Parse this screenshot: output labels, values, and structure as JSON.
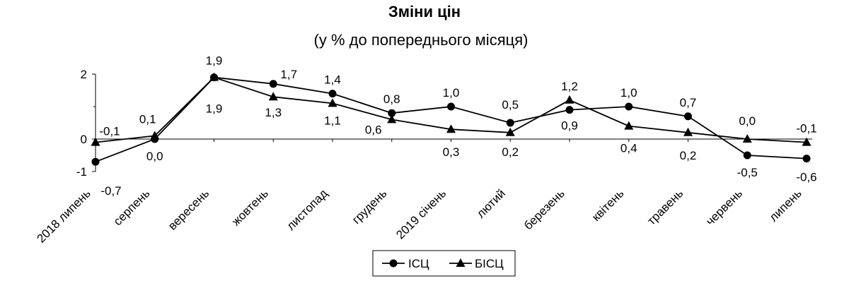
{
  "chart_data": {
    "type": "line",
    "title": "Зміни цін",
    "subtitle": "(у % до попереднього місяця)",
    "categories": [
      "2018 липень",
      "серпень",
      "вересень",
      "жовтень",
      "листопад",
      "грудень",
      "2019 січень",
      "лютий",
      "березень",
      "квітень",
      "травень",
      "червень",
      "липень"
    ],
    "series": [
      {
        "name": "ІСЦ",
        "marker": "circle",
        "values": [
          -0.7,
          0.0,
          1.9,
          1.7,
          1.4,
          0.8,
          1.0,
          0.5,
          0.9,
          1.0,
          0.7,
          -0.5,
          -0.6
        ],
        "labels": [
          "-0,7",
          "0,0",
          "1,9",
          "1,7",
          "1,4",
          "0,8",
          "1,0",
          "0,5",
          "0,9",
          "1,0",
          "0,7",
          "-0,5",
          "-0,6"
        ]
      },
      {
        "name": "БІСЦ",
        "marker": "triangle",
        "values": [
          -0.1,
          0.1,
          1.9,
          1.3,
          1.1,
          0.6,
          0.3,
          0.2,
          1.2,
          0.4,
          0.2,
          0.0,
          -0.1
        ],
        "labels": [
          "-0,1",
          "0,1",
          "1,9",
          "1,3",
          "1,1",
          "0,6",
          "0,3",
          "0,2",
          "1,2",
          "0,4",
          "0,2",
          "0,0",
          "-0,1"
        ]
      }
    ],
    "yticks": [
      "2",
      "0",
      "-1"
    ],
    "ylim": [
      -1,
      2
    ],
    "grid": false,
    "legend_position": "bottom-center",
    "color": "#000000"
  }
}
